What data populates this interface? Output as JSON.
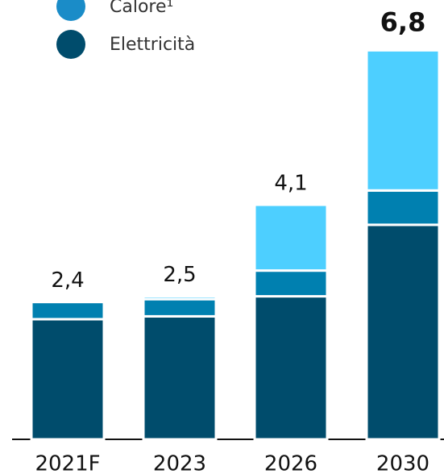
{
  "chart_data": {
    "type": "stacked_bar",
    "categories": [
      "2021F",
      "2023",
      "2026",
      "2030"
    ],
    "series": [
      {
        "name": "Elettricità",
        "color": "#004c6c",
        "values": [
          2.1,
          2.15,
          2.5,
          3.75
        ]
      },
      {
        "name": "Calore¹",
        "color": "#0080b0",
        "values": [
          0.3,
          0.3,
          0.45,
          0.6
        ]
      },
      {
        "color": "#4dcfff",
        "values": [
          0,
          0.05,
          1.15,
          2.45
        ]
      }
    ],
    "totals": [
      2.4,
      2.5,
      4.1,
      6.8
    ],
    "total_labels": [
      "2,4",
      "2,5",
      "4,1",
      "6,8"
    ],
    "ylim": [
      0,
      7.2
    ]
  }
}
